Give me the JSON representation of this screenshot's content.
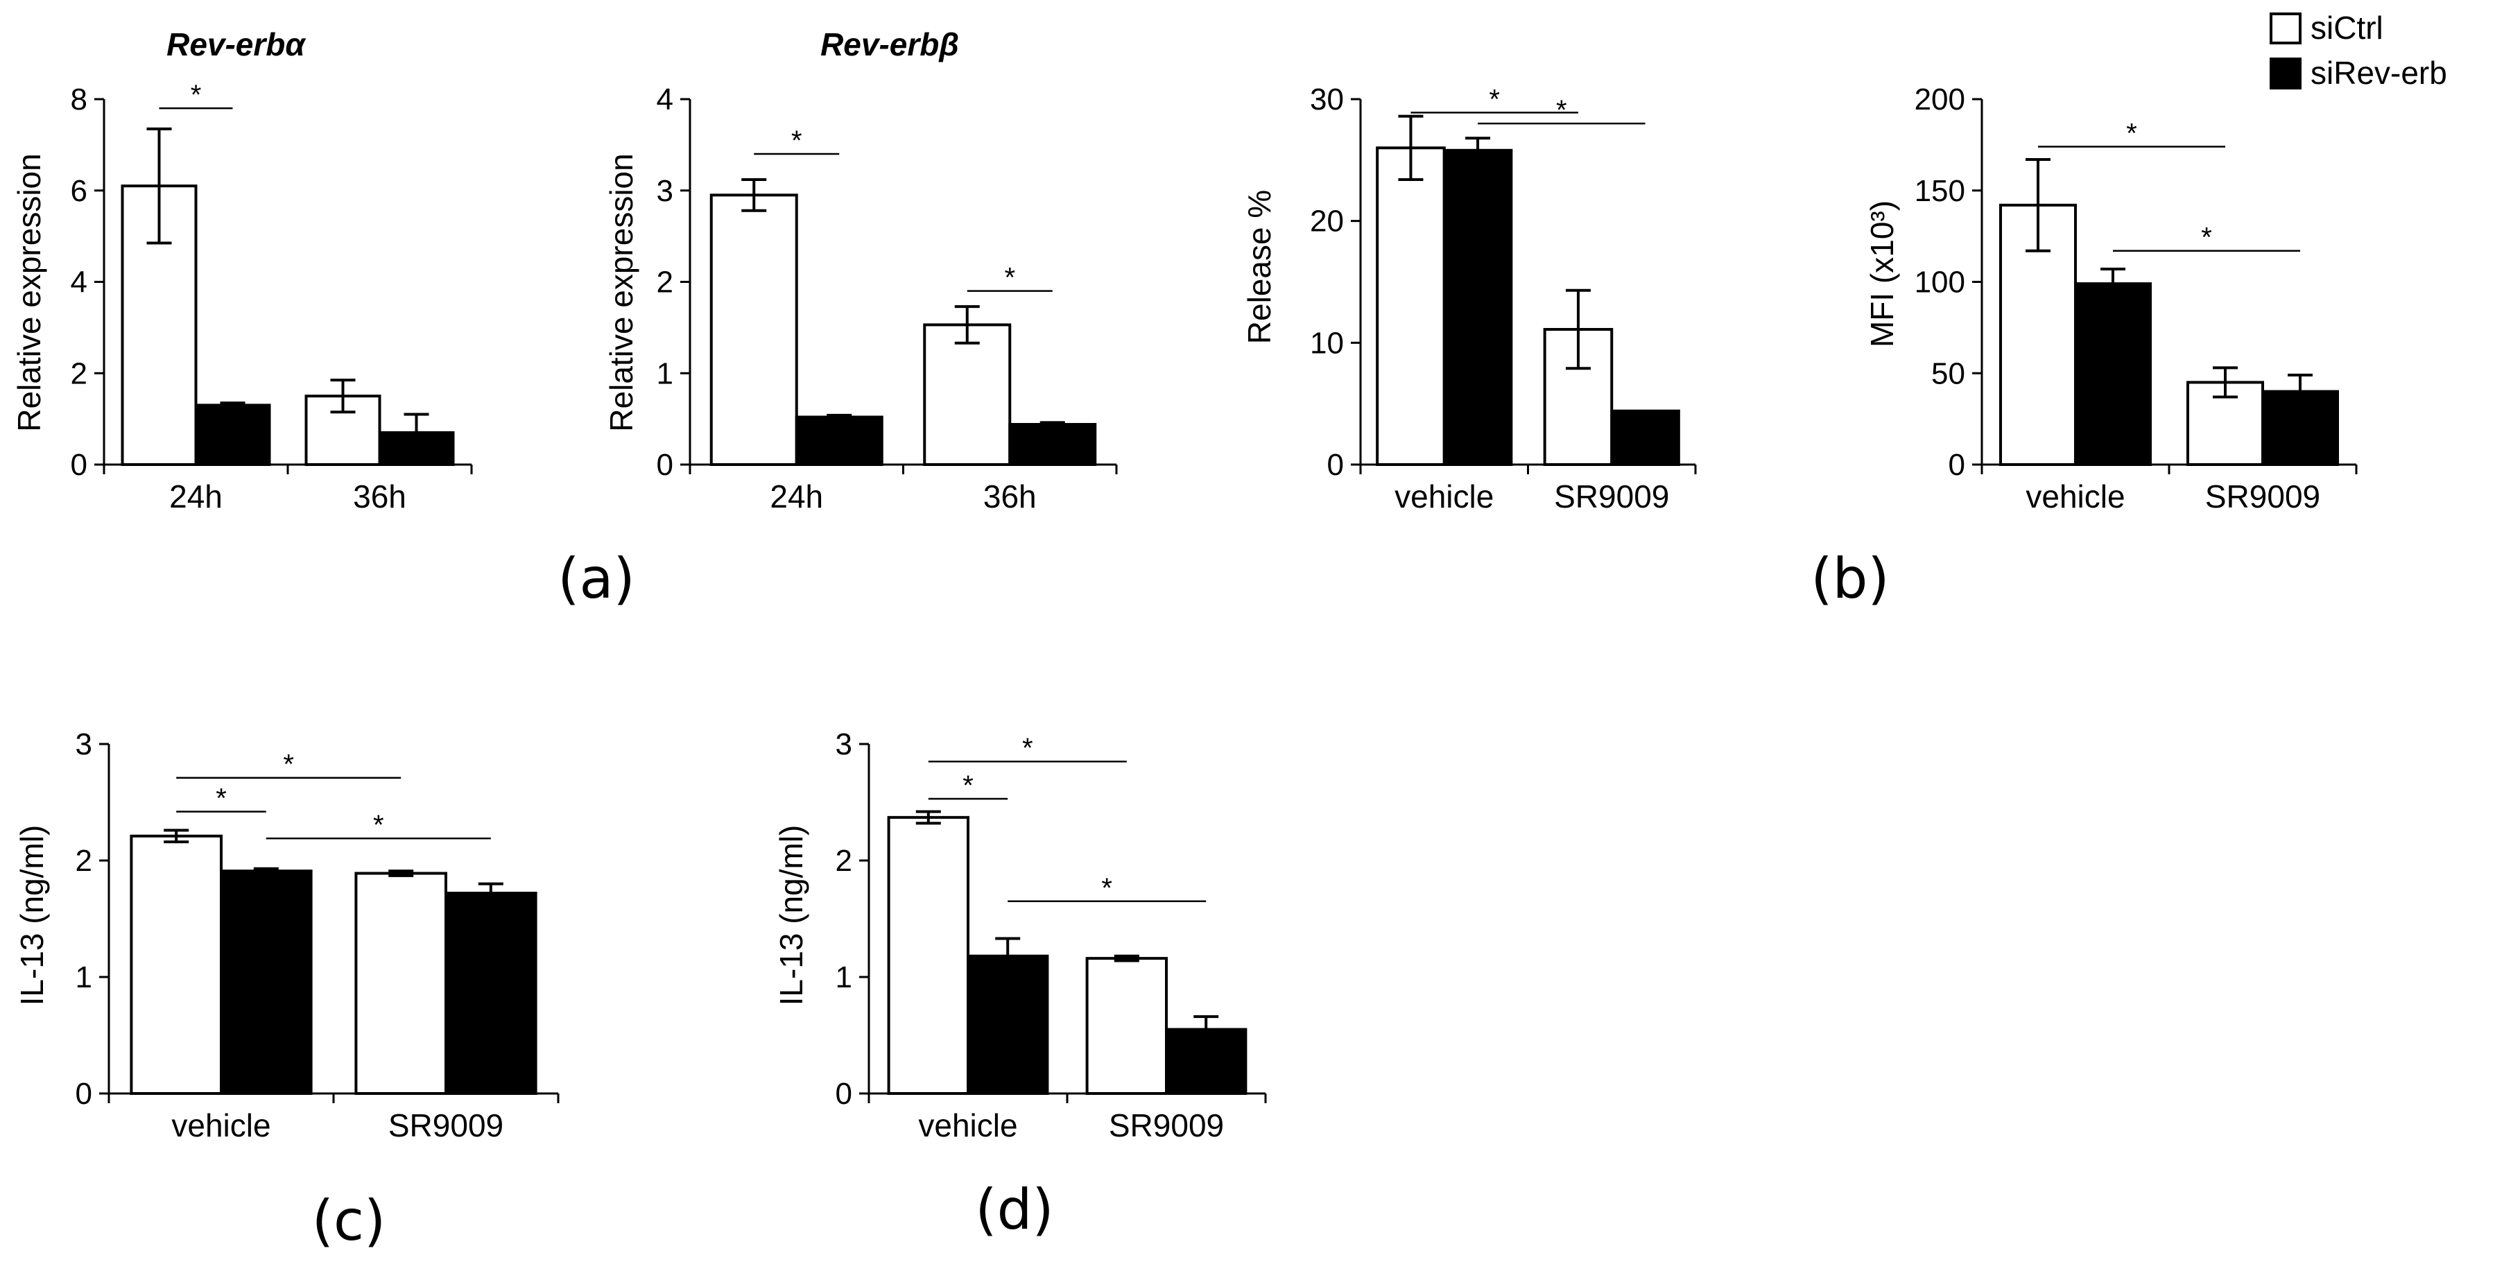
{
  "legend": {
    "entries": [
      {
        "label": "siCtrl",
        "color": "#ffffff"
      },
      {
        "label": "siRev-erb",
        "color": "#000000"
      }
    ]
  },
  "panel_labels": [
    "(a)",
    "(b)",
    "(c)",
    "(d)"
  ],
  "chart_data": [
    {
      "id": "a1",
      "type": "bar",
      "title": "Rev-erbα",
      "ylabel": "Relative expression",
      "xlabel": "",
      "ylim": [
        0,
        8
      ],
      "yticks": [
        0,
        2,
        4,
        6,
        8
      ],
      "categories": [
        "24h",
        "36h"
      ],
      "series": [
        {
          "name": "siCtrl",
          "values": [
            6.1,
            1.5
          ],
          "errors": [
            1.25,
            0.35
          ]
        },
        {
          "name": "siRev-erb",
          "values": [
            1.3,
            0.7
          ],
          "errors": [
            0.05,
            0.4
          ]
        }
      ],
      "significance": [
        {
          "from": [
            0,
            0
          ],
          "to": [
            0,
            1
          ],
          "level": 7.8,
          "label": "*"
        }
      ]
    },
    {
      "id": "a2",
      "type": "bar",
      "title": "Rev-erbβ",
      "ylabel": "Relative expression",
      "xlabel": "",
      "ylim": [
        0,
        4
      ],
      "yticks": [
        0,
        1,
        2,
        3,
        4
      ],
      "categories": [
        "24h",
        "36h"
      ],
      "series": [
        {
          "name": "siCtrl",
          "values": [
            2.95,
            1.53
          ],
          "errors": [
            0.17,
            0.2
          ]
        },
        {
          "name": "siRev-erb",
          "values": [
            0.52,
            0.44
          ],
          "errors": [
            0.02,
            0.02
          ]
        }
      ],
      "significance": [
        {
          "from": [
            0,
            0
          ],
          "to": [
            0,
            1
          ],
          "level": 3.4,
          "label": "*"
        },
        {
          "from": [
            1,
            0
          ],
          "to": [
            1,
            1
          ],
          "level": 1.9,
          "label": "*"
        }
      ]
    },
    {
      "id": "b1",
      "type": "bar",
      "title": "",
      "ylabel": "Release %",
      "xlabel": "",
      "ylim": [
        0,
        30
      ],
      "yticks": [
        0,
        10,
        20,
        30
      ],
      "categories": [
        "vehicle",
        "SR9009"
      ],
      "series": [
        {
          "name": "siCtrl",
          "values": [
            26,
            11.1
          ],
          "errors": [
            2.6,
            3.2
          ]
        },
        {
          "name": "siRev-erb",
          "values": [
            25.8,
            4.4
          ],
          "errors": [
            1.0,
            0.0
          ]
        }
      ],
      "significance": [
        {
          "from": [
            0,
            0
          ],
          "to": [
            1,
            0
          ],
          "level": 28.9,
          "label": "*"
        },
        {
          "from": [
            0,
            1
          ],
          "to": [
            1,
            1
          ],
          "level": 28.0,
          "label": "*"
        }
      ]
    },
    {
      "id": "b2",
      "type": "bar",
      "title": "",
      "ylabel": "MFI (x10³)",
      "xlabel": "",
      "ylim": [
        0,
        200
      ],
      "yticks": [
        0,
        50,
        100,
        150,
        200
      ],
      "categories": [
        "vehicle",
        "SR9009"
      ],
      "series": [
        {
          "name": "siCtrl",
          "values": [
            142,
            45
          ],
          "errors": [
            25,
            8
          ]
        },
        {
          "name": "siRev-erb",
          "values": [
            99,
            40
          ],
          "errors": [
            8,
            9
          ]
        }
      ],
      "significance": [
        {
          "from": [
            0,
            0
          ],
          "to": [
            1,
            0
          ],
          "level": 174,
          "label": "*"
        },
        {
          "from": [
            0,
            1
          ],
          "to": [
            1,
            1
          ],
          "level": 117,
          "label": "*"
        }
      ]
    },
    {
      "id": "c",
      "type": "bar",
      "title": "",
      "ylabel": "IL-13 (ng/ml)",
      "xlabel": "",
      "ylim": [
        0,
        3
      ],
      "yticks": [
        0,
        1,
        2,
        3
      ],
      "categories": [
        "vehicle",
        "SR9009"
      ],
      "series": [
        {
          "name": "siCtrl",
          "values": [
            2.21,
            1.89
          ],
          "errors": [
            0.05,
            0.02
          ]
        },
        {
          "name": "siRev-erb",
          "values": [
            1.91,
            1.72
          ],
          "errors": [
            0.02,
            0.08
          ]
        }
      ],
      "significance": [
        {
          "from": [
            0,
            0
          ],
          "to": [
            1,
            0
          ],
          "level": 2.71,
          "label": "*"
        },
        {
          "from": [
            0,
            0
          ],
          "to": [
            0,
            1
          ],
          "level": 2.42,
          "label": "*"
        },
        {
          "from": [
            0,
            1
          ],
          "to": [
            1,
            1
          ],
          "level": 2.19,
          "label": "*"
        }
      ]
    },
    {
      "id": "d",
      "type": "bar",
      "title": "",
      "ylabel": "IL-13 (ng/ml)",
      "xlabel": "",
      "ylim": [
        0,
        3
      ],
      "yticks": [
        0,
        1,
        2,
        3
      ],
      "categories": [
        "vehicle",
        "SR9009"
      ],
      "series": [
        {
          "name": "siCtrl",
          "values": [
            2.37,
            1.16
          ],
          "errors": [
            0.05,
            0.02
          ]
        },
        {
          "name": "siRev-erb",
          "values": [
            1.18,
            0.55
          ],
          "errors": [
            0.15,
            0.11
          ]
        }
      ],
      "significance": [
        {
          "from": [
            0,
            0
          ],
          "to": [
            1,
            0
          ],
          "level": 2.85,
          "label": "*"
        },
        {
          "from": [
            0,
            0
          ],
          "to": [
            0,
            1
          ],
          "level": 2.53,
          "label": "*"
        },
        {
          "from": [
            0,
            1
          ],
          "to": [
            1,
            1
          ],
          "level": 1.65,
          "label": "*"
        }
      ]
    }
  ]
}
